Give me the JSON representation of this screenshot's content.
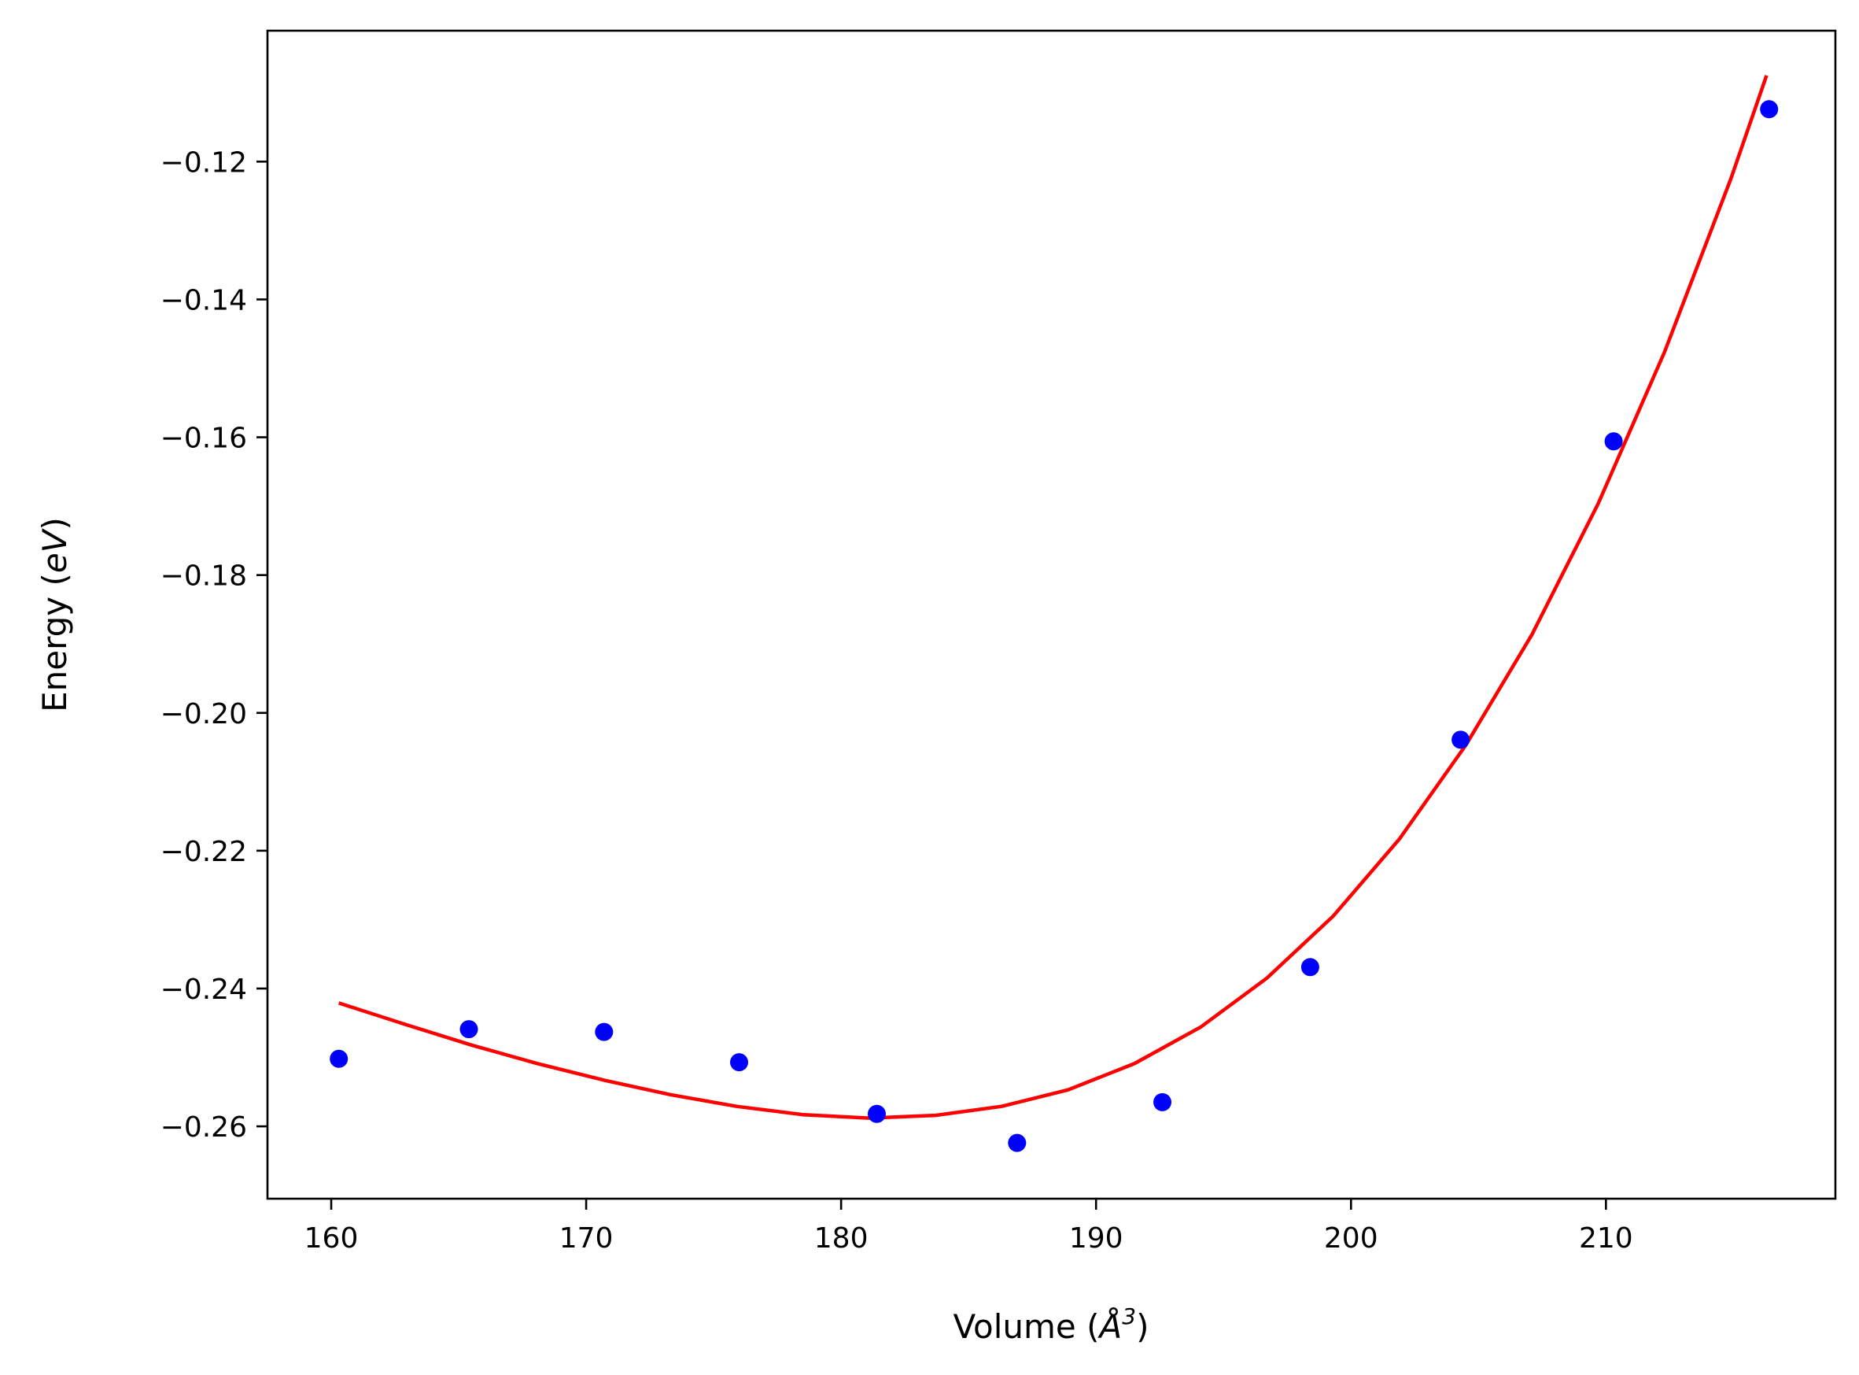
{
  "chart_data": {
    "type": "scatter",
    "xlabel": {
      "base": "Volume (",
      "symbol": "Å",
      "sup": "3",
      "close": ")"
    },
    "ylabel": {
      "base": "Energy (",
      "symbol": "eV",
      "close": ")"
    },
    "xlim": [
      157.5,
      219
    ],
    "ylim": [
      -0.2705,
      -0.101
    ],
    "xticks": [
      160,
      170,
      180,
      190,
      200,
      210
    ],
    "xtick_labels": [
      "160",
      "170",
      "180",
      "190",
      "200",
      "210"
    ],
    "yticks": [
      -0.26,
      -0.24,
      -0.22,
      -0.2,
      -0.18,
      -0.16,
      -0.14,
      -0.12
    ],
    "ytick_labels": [
      "−0.26",
      "−0.24",
      "−0.22",
      "−0.20",
      "−0.18",
      "−0.16",
      "−0.14",
      "−0.12"
    ],
    "grid": false,
    "series": [
      {
        "kind": "points",
        "color": "#0000ff",
        "x": [
          160.3,
          165.4,
          170.7,
          176.0,
          181.4,
          186.9,
          192.6,
          198.4,
          204.3,
          210.3,
          216.4
        ],
        "y": [
          -0.2502,
          -0.2459,
          -0.2463,
          -0.2507,
          -0.2582,
          -0.2624,
          -0.2565,
          -0.2369,
          -0.2039,
          -0.1606,
          -0.1124
        ]
      },
      {
        "kind": "fit-curve",
        "color": "#ff0000",
        "x": [
          160.3,
          162.9,
          165.5,
          168.1,
          170.7,
          173.3,
          175.9,
          178.5,
          181.1,
          183.7,
          186.3,
          188.9,
          191.5,
          194.1,
          196.7,
          199.3,
          201.9,
          204.5,
          207.1,
          209.7,
          212.3,
          214.9,
          216.3
        ],
        "y": [
          -0.2421,
          -0.2452,
          -0.2482,
          -0.2509,
          -0.2533,
          -0.2554,
          -0.2571,
          -0.2583,
          -0.2588,
          -0.2584,
          -0.2571,
          -0.2547,
          -0.2509,
          -0.2456,
          -0.2385,
          -0.2295,
          -0.2183,
          -0.2047,
          -0.1886,
          -0.1696,
          -0.1476,
          -0.1225,
          -0.1075
        ]
      }
    ]
  }
}
